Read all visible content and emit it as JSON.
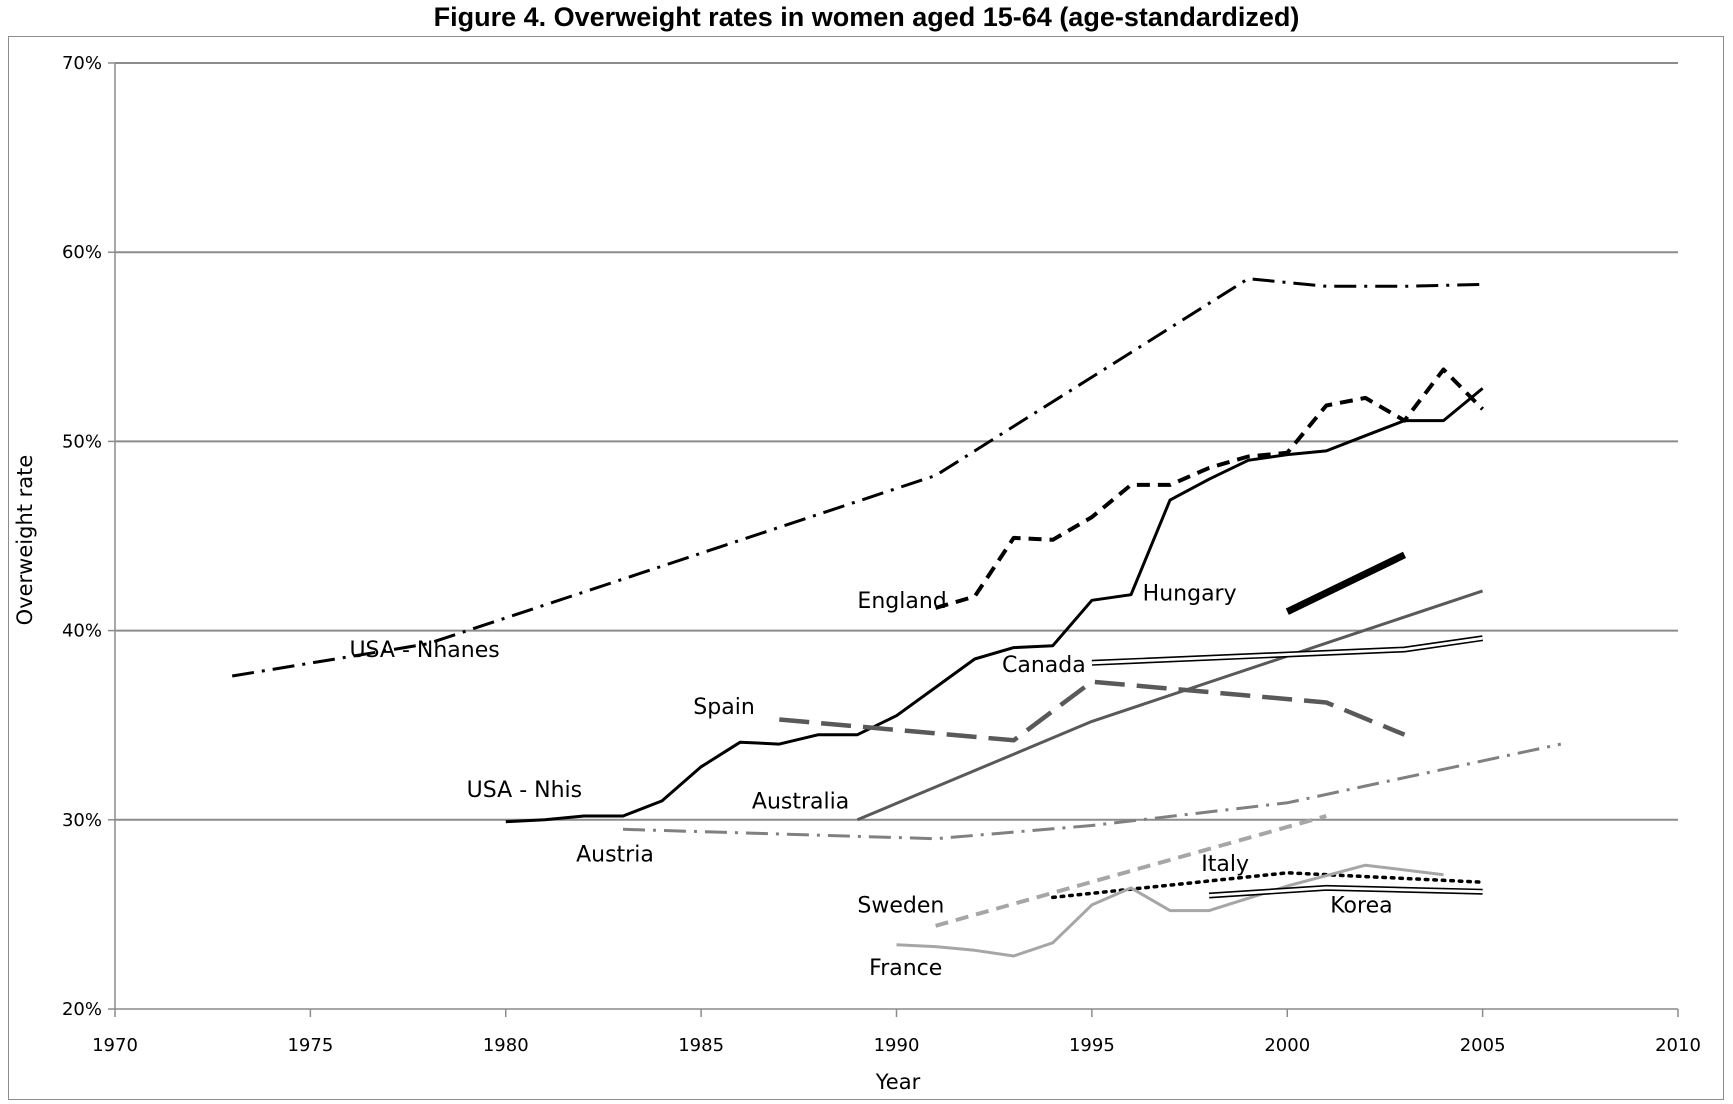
{
  "chart_data": {
    "type": "line",
    "title": "Figure 4.    Overweight rates in women aged 15-64 (age-standardized)",
    "xlabel": "Year",
    "ylabel": "Overweight rate",
    "xlim": [
      1970,
      2010
    ],
    "ylim": [
      0.2,
      0.7
    ],
    "xticks": [
      1970,
      1975,
      1980,
      1985,
      1990,
      1995,
      2000,
      2005,
      2010
    ],
    "yticks": [
      {
        "value": 0.2,
        "label": "20%"
      },
      {
        "value": 0.3,
        "label": "30%"
      },
      {
        "value": 0.4,
        "label": "40%"
      },
      {
        "value": 0.5,
        "label": "50%"
      },
      {
        "value": 0.6,
        "label": "60%"
      },
      {
        "value": 0.7,
        "label": "70%"
      }
    ],
    "grid": true,
    "series": [
      {
        "name": "USA - Nhanes",
        "color": "#000000",
        "style": "dashdot",
        "label_at": [
          1976,
          0.386
        ],
        "x": [
          1973,
          1978,
          1991,
          1999,
          2001,
          2003,
          2005
        ],
        "y": [
          0.376,
          0.393,
          0.482,
          0.586,
          0.582,
          0.582,
          0.583
        ]
      },
      {
        "name": "England",
        "color": "#000000",
        "style": "dash",
        "label_at": [
          1989,
          0.412
        ],
        "x": [
          1991,
          1992,
          1993,
          1994,
          1995,
          1996,
          1997,
          1998,
          1999,
          2000,
          2001,
          2002,
          2003,
          2004,
          2005
        ],
        "y": [
          0.412,
          0.418,
          0.449,
          0.448,
          0.46,
          0.477,
          0.477,
          0.486,
          0.492,
          0.494,
          0.519,
          0.523,
          0.511,
          0.538,
          0.517
        ]
      },
      {
        "name": "USA - Nhis",
        "color": "#000000",
        "style": "solid",
        "label_at": [
          1979,
          0.312
        ],
        "x": [
          1980,
          1981,
          1982,
          1983,
          1984,
          1985,
          1986,
          1987,
          1988,
          1989,
          1990,
          1991,
          1992,
          1993,
          1994,
          1995,
          1996,
          1997,
          1998,
          1999,
          2000,
          2001,
          2002,
          2003,
          2004,
          2005
        ],
        "y": [
          0.299,
          0.3,
          0.302,
          0.302,
          0.31,
          0.328,
          0.341,
          0.34,
          0.345,
          0.345,
          0.355,
          0.37,
          0.385,
          0.391,
          0.392,
          0.416,
          0.419,
          0.469,
          0.48,
          0.49,
          0.493,
          0.495,
          0.503,
          0.511,
          0.511,
          0.528
        ]
      },
      {
        "name": "Hungary",
        "color": "#000000",
        "style": "bold",
        "label_at": [
          1996.3,
          0.416
        ],
        "x": [
          2000,
          2003
        ],
        "y": [
          0.41,
          0.44
        ]
      },
      {
        "name": "Australia",
        "color": "#595959",
        "style": "solid",
        "label_at": [
          1986.3,
          0.306
        ],
        "x": [
          1989,
          1995,
          2005
        ],
        "y": [
          0.3,
          0.352,
          0.421
        ]
      },
      {
        "name": "Canada",
        "color": "#000000",
        "style": "double",
        "label_at": [
          1992.7,
          0.378
        ],
        "x": [
          1995,
          2003,
          2005
        ],
        "y": [
          0.383,
          0.39,
          0.396
        ]
      },
      {
        "name": "Spain",
        "color": "#595959",
        "style": "longdash",
        "label_at": [
          1984.8,
          0.356
        ],
        "x": [
          1987,
          1993,
          1995,
          2001,
          2003
        ],
        "y": [
          0.353,
          0.342,
          0.373,
          0.362,
          0.345
        ]
      },
      {
        "name": "Austria",
        "color": "#808080",
        "style": "dashdot",
        "label_at": [
          1981.8,
          0.278
        ],
        "x": [
          1983,
          1991,
          1995,
          2000,
          2007
        ],
        "y": [
          0.295,
          0.29,
          0.297,
          0.309,
          0.34
        ]
      },
      {
        "name": "Sweden",
        "color": "#a6a6a6",
        "style": "dash",
        "label_at": [
          1989,
          0.251
        ],
        "x": [
          1991,
          2001
        ],
        "y": [
          0.244,
          0.302
        ]
      },
      {
        "name": "Italy",
        "color": "#000000",
        "style": "dot",
        "label_at": [
          1997.8,
          0.273
        ],
        "x": [
          1994,
          2000,
          2005
        ],
        "y": [
          0.259,
          0.272,
          0.267
        ]
      },
      {
        "name": "France",
        "color": "#a6a6a6",
        "style": "solid",
        "label_at": [
          1989.3,
          0.218
        ],
        "x": [
          1990,
          1991,
          1992,
          1993,
          1994,
          1995,
          1996,
          1997,
          1998,
          2000,
          2002,
          2004
        ],
        "y": [
          0.234,
          0.233,
          0.231,
          0.228,
          0.235,
          0.255,
          0.264,
          0.252,
          0.252,
          0.265,
          0.276,
          0.271
        ]
      },
      {
        "name": "Korea",
        "color": "#000000",
        "style": "double",
        "label_at": [
          2001.1,
          0.251
        ],
        "x": [
          1998,
          2001,
          2005
        ],
        "y": [
          0.26,
          0.264,
          0.262
        ]
      }
    ]
  }
}
